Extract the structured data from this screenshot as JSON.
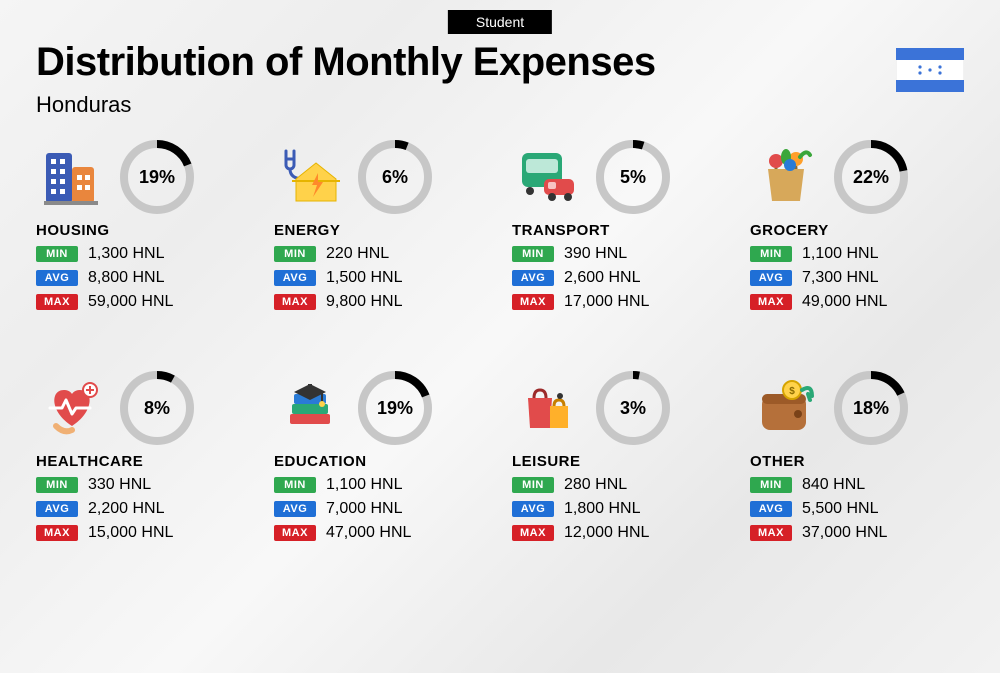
{
  "tag": "Student",
  "title": "Distribution of Monthly Expenses",
  "subtitle": "Honduras",
  "currency": "HNL",
  "badge_labels": {
    "min": "MIN",
    "avg": "AVG",
    "max": "MAX"
  },
  "badge_colors": {
    "min": "#2fa84f",
    "avg": "#1f6fd6",
    "max": "#d62027"
  },
  "ring": {
    "size": 74,
    "stroke_width": 8,
    "track_color": "#c7c7c7",
    "fill_color": "#000000"
  },
  "flag": {
    "bg": "#ffffff",
    "stripe": "#3b73d8",
    "star": "#3b73d8"
  },
  "categories": [
    {
      "name": "HOUSING",
      "percent": 19,
      "min": "1,300",
      "avg": "8,800",
      "max": "59,000",
      "icon": "buildings"
    },
    {
      "name": "ENERGY",
      "percent": 6,
      "min": "220",
      "avg": "1,500",
      "max": "9,800",
      "icon": "energy"
    },
    {
      "name": "TRANSPORT",
      "percent": 5,
      "min": "390",
      "avg": "2,600",
      "max": "17,000",
      "icon": "transport"
    },
    {
      "name": "GROCERY",
      "percent": 22,
      "min": "1,100",
      "avg": "7,300",
      "max": "49,000",
      "icon": "grocery"
    },
    {
      "name": "HEALTHCARE",
      "percent": 8,
      "min": "330",
      "avg": "2,200",
      "max": "15,000",
      "icon": "healthcare"
    },
    {
      "name": "EDUCATION",
      "percent": 19,
      "min": "1,100",
      "avg": "7,000",
      "max": "47,000",
      "icon": "education"
    },
    {
      "name": "LEISURE",
      "percent": 3,
      "min": "280",
      "avg": "1,800",
      "max": "12,000",
      "icon": "leisure"
    },
    {
      "name": "OTHER",
      "percent": 18,
      "min": "840",
      "avg": "5,500",
      "max": "37,000",
      "icon": "other"
    }
  ]
}
